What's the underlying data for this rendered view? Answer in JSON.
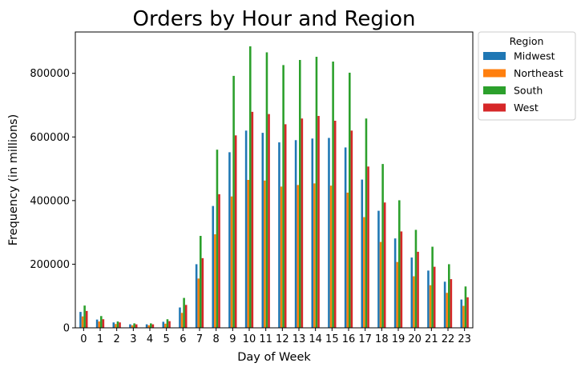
{
  "chart_data": {
    "type": "bar",
    "title": "Orders by Hour and Region",
    "xlabel": "Day of Week",
    "ylabel": "Frequency (in millions)",
    "categories": [
      "0",
      "1",
      "2",
      "3",
      "4",
      "5",
      "6",
      "7",
      "8",
      "9",
      "10",
      "11",
      "12",
      "13",
      "14",
      "15",
      "16",
      "17",
      "18",
      "19",
      "20",
      "21",
      "22",
      "23"
    ],
    "ylim": [
      0,
      930000
    ],
    "yticks": [
      0,
      200000,
      400000,
      600000,
      800000
    ],
    "ytick_labels": [
      "0",
      "200000",
      "400000",
      "600000",
      "800000"
    ],
    "grid": false,
    "legend": {
      "title": "Region",
      "placement": "outside-top-right"
    },
    "series": [
      {
        "name": "Midwest",
        "color": "#1f77b4",
        "values": [
          50000,
          26000,
          17000,
          11000,
          11000,
          19000,
          64000,
          200000,
          383000,
          552000,
          620000,
          613000,
          583000,
          590000,
          595000,
          597000,
          567000,
          466000,
          368000,
          281000,
          221000,
          180000,
          145000,
          89000
        ]
      },
      {
        "name": "Northeast",
        "color": "#ff7f0e",
        "values": [
          36000,
          20000,
          12000,
          8000,
          8000,
          13000,
          47000,
          155000,
          294000,
          413000,
          465000,
          463000,
          444000,
          449000,
          454000,
          447000,
          425000,
          348000,
          270000,
          207000,
          162000,
          134000,
          110000,
          69000
        ]
      },
      {
        "name": "South",
        "color": "#2ca02c",
        "values": [
          70000,
          37000,
          20000,
          14000,
          14000,
          27000,
          94000,
          289000,
          560000,
          792000,
          885000,
          866000,
          826000,
          842000,
          852000,
          837000,
          802000,
          658000,
          515000,
          401000,
          308000,
          255000,
          200000,
          130000
        ]
      },
      {
        "name": "West",
        "color": "#d62728",
        "values": [
          53000,
          27000,
          17000,
          11000,
          11000,
          21000,
          72000,
          219000,
          420000,
          605000,
          679000,
          672000,
          640000,
          658000,
          666000,
          651000,
          620000,
          507000,
          394000,
          303000,
          239000,
          192000,
          153000,
          96000
        ]
      }
    ]
  }
}
